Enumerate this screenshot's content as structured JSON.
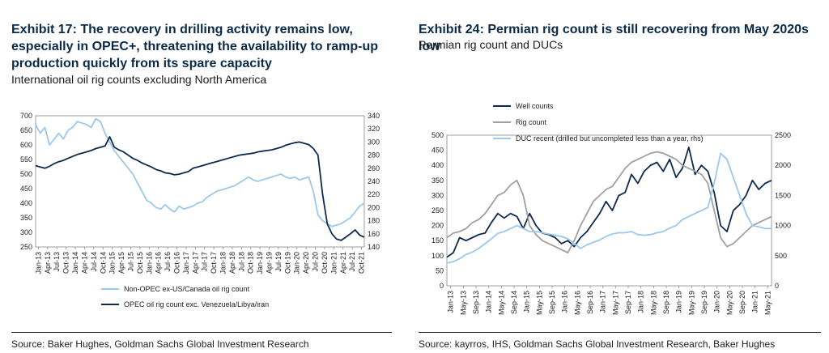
{
  "left": {
    "title": "Exhibit 17: The recovery in drilling activity remains low, especially in OPEC+, threatening the availability to ramp-up production quickly from its spare capacity",
    "subtitle": "International oil rig counts excluding North America",
    "source": "Source: Baker Hughes, Goldman Sachs Global Investment Research"
  },
  "right": {
    "title": "Exhibit 24: Permian rig count is still recovering from May 2020s low",
    "subtitle": "Permian rig count and DUCs",
    "source": "Source: kayrros, IHS, Goldman Sachs Global Investment Research, Baker Hughes"
  },
  "chart_data": [
    {
      "type": "line",
      "x_ticks": [
        "Jan-13",
        "Apr-13",
        "Jul-13",
        "Oct-13",
        "Jan-14",
        "Apr-14",
        "Jul-14",
        "Oct-14",
        "Jan-15",
        "Apr-15",
        "Jul-15",
        "Oct-15",
        "Jan-16",
        "Apr-16",
        "Jul-16",
        "Oct-16",
        "Jan-17",
        "Apr-17",
        "Jul-17",
        "Oct-17",
        "Jan-18",
        "Apr-18",
        "Jul-18",
        "Oct-18",
        "Jan-19",
        "Apr-19",
        "Jul-19",
        "Oct-19",
        "Jan-20",
        "Apr-20",
        "Jul-20",
        "Oct-20",
        "Jan-21",
        "Apr-21",
        "Jul-21",
        "Oct-21"
      ],
      "y_left": {
        "ticks": [
          "700",
          "650",
          "600",
          "550",
          "500",
          "450",
          "400",
          "350",
          "300",
          "250"
        ],
        "min": 250,
        "max": 700
      },
      "y_right": {
        "ticks": [
          "340",
          "320",
          "300",
          "280",
          "260",
          "240",
          "220",
          "200",
          "180",
          "160",
          "140"
        ],
        "min": 140,
        "max": 340
      },
      "series": [
        {
          "name": "Non-OPEC ex-US/Canada oil rig count",
          "axis": "left",
          "color": "#9cc8ea",
          "values": [
            670,
            640,
            660,
            600,
            620,
            640,
            620,
            650,
            660,
            680,
            675,
            670,
            660,
            690,
            680,
            640,
            610,
            580,
            560,
            540,
            520,
            500,
            470,
            440,
            410,
            400,
            385,
            380,
            395,
            380,
            370,
            390,
            380,
            385,
            390,
            400,
            405,
            420,
            430,
            440,
            445,
            450,
            455,
            460,
            470,
            480,
            490,
            480,
            475,
            480,
            485,
            490,
            495,
            500,
            490,
            485,
            490,
            480,
            485,
            490,
            440,
            360,
            340,
            330,
            320,
            325,
            330,
            340,
            350,
            370,
            390,
            400
          ]
        },
        {
          "name": "OPEC oil rig count exc. Venezuela/Libya/iran",
          "axis": "right",
          "color": "#0e2a4e",
          "values": [
            264,
            262,
            260,
            263,
            267,
            270,
            272,
            275,
            278,
            281,
            283,
            285,
            287,
            290,
            292,
            294,
            308,
            292,
            288,
            285,
            280,
            275,
            272,
            268,
            265,
            262,
            258,
            256,
            253,
            252,
            250,
            251,
            253,
            255,
            260,
            262,
            264,
            266,
            268,
            270,
            272,
            274,
            276,
            278,
            280,
            281,
            282,
            283,
            285,
            286,
            287,
            288,
            290,
            292,
            295,
            297,
            299,
            300,
            298,
            296,
            290,
            280,
            220,
            175,
            160,
            152,
            150,
            155,
            160,
            166,
            158,
            155
          ]
        }
      ]
    },
    {
      "type": "line",
      "x_ticks": [
        "Jan-13",
        "May-13",
        "Sep-13",
        "Jan-14",
        "May-14",
        "Sep-14",
        "Jan-15",
        "May-15",
        "Sep-15",
        "Jan-16",
        "May-16",
        "Sep-16",
        "Jan-17",
        "May-17",
        "Sep-17",
        "Jan-18",
        "May-18",
        "Sep-18",
        "Jan-19",
        "May-19",
        "Sep-19",
        "Jan-20",
        "May-20",
        "Sep-20",
        "Jan-21",
        "May-21"
      ],
      "y_left": {
        "ticks": [
          "500",
          "450",
          "400",
          "350",
          "300",
          "250",
          "200",
          "150",
          "100",
          "50",
          "0"
        ],
        "min": 0,
        "max": 500
      },
      "y_right": {
        "ticks": [
          "2500",
          "2000",
          "1500",
          "1000",
          "500",
          "0"
        ],
        "min": 0,
        "max": 2500
      },
      "legend": [
        "Well counts",
        "Rig count",
        "DUC recent (drilled but uncompleted less than a year, rhs)"
      ],
      "series": [
        {
          "name": "Well counts",
          "axis": "left",
          "color": "#0e2a4e",
          "values": [
            95,
            110,
            160,
            150,
            160,
            170,
            175,
            210,
            240,
            225,
            240,
            230,
            190,
            240,
            200,
            175,
            170,
            160,
            140,
            150,
            130,
            160,
            180,
            210,
            240,
            280,
            250,
            300,
            310,
            370,
            340,
            380,
            400,
            410,
            380,
            420,
            360,
            390,
            460,
            370,
            400,
            380,
            310,
            200,
            180,
            250,
            270,
            300,
            350,
            320,
            340,
            350
          ]
        },
        {
          "name": "Rig count",
          "axis": "left",
          "color": "#a0a0a0",
          "values": [
            160,
            175,
            180,
            190,
            210,
            220,
            240,
            270,
            300,
            310,
            335,
            350,
            300,
            200,
            170,
            150,
            140,
            130,
            120,
            110,
            150,
            200,
            240,
            280,
            300,
            320,
            330,
            360,
            390,
            410,
            420,
            430,
            440,
            445,
            440,
            430,
            420,
            400,
            390,
            380,
            370,
            340,
            250,
            160,
            130,
            140,
            160,
            180,
            200,
            210,
            220,
            230
          ]
        },
        {
          "name": "DUC recent (drilled but uncompleted less than a year, rhs)",
          "axis": "right",
          "color": "#9cc8ea",
          "values": [
            380,
            400,
            450,
            520,
            560,
            620,
            700,
            780,
            870,
            900,
            950,
            1000,
            950,
            900,
            900,
            880,
            860,
            840,
            820,
            780,
            700,
            620,
            680,
            720,
            760,
            820,
            860,
            880,
            880,
            900,
            850,
            840,
            850,
            880,
            900,
            960,
            1000,
            1100,
            1150,
            1200,
            1250,
            1300,
            1700,
            2200,
            2100,
            1800,
            1500,
            1200,
            1000,
            980,
            950,
            950
          ]
        }
      ]
    }
  ]
}
